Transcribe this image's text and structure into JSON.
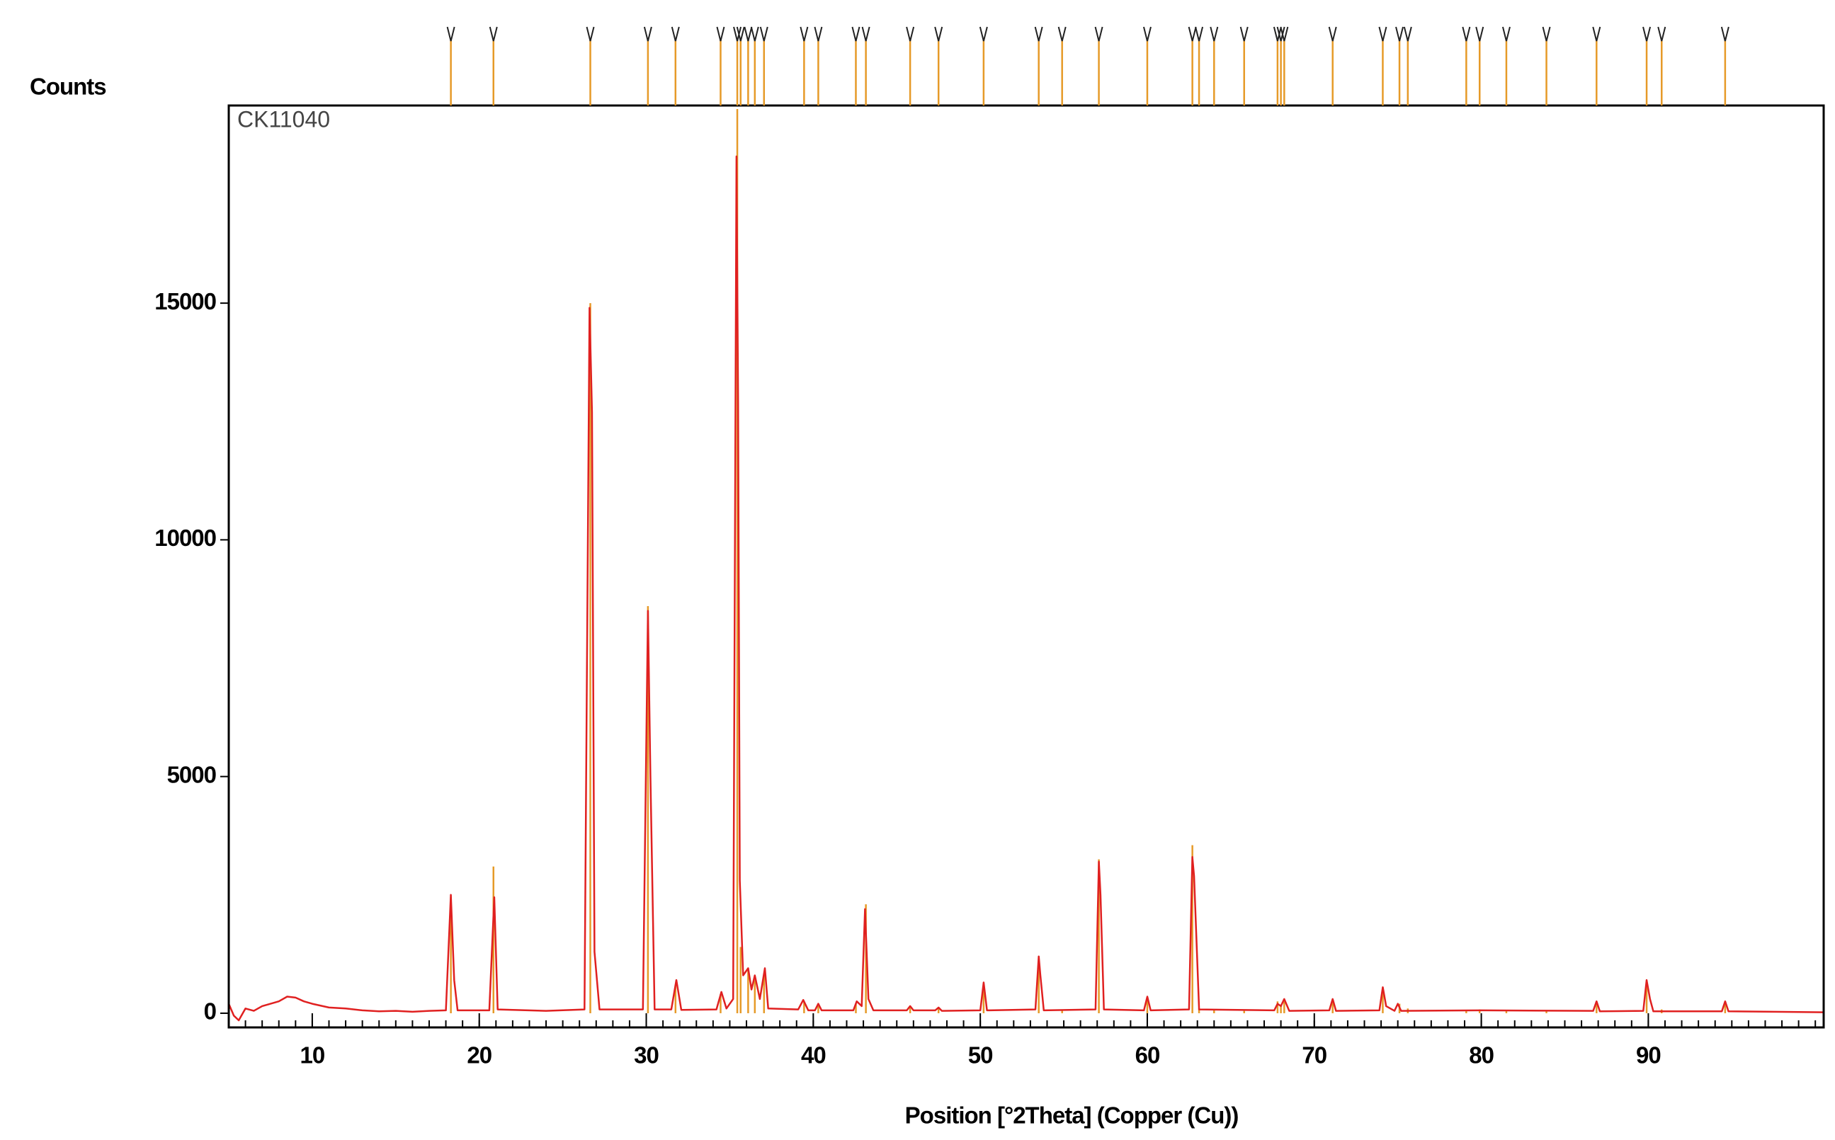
{
  "chart_data": {
    "type": "line",
    "y_label": "Counts",
    "annotation": "CK11040",
    "x_label": "Position [°2Theta] (Copper (Cu))",
    "xlim": [
      5,
      100.5
    ],
    "ylim": [
      -300,
      19175
    ],
    "xticks": [
      10,
      20,
      30,
      40,
      50,
      60,
      70,
      80,
      90
    ],
    "xminor_step": 1,
    "yticks": [
      0,
      5000,
      10000,
      15000
    ],
    "pattern": {
      "color": "#e02020",
      "x": [
        5,
        5.3,
        5.6,
        6,
        6.5,
        7,
        7.5,
        8,
        8.5,
        9,
        9.5,
        10,
        11,
        12,
        13,
        14,
        15,
        16,
        17,
        18,
        18.3,
        18.5,
        18.7,
        20.6,
        20.9,
        21.1,
        24,
        26.3,
        26.6,
        26.75,
        26.9,
        27.2,
        29.8,
        30.1,
        30.25,
        30.5,
        31.5,
        31.8,
        32.1,
        34.2,
        34.5,
        34.8,
        35.2,
        35.4,
        35.5,
        35.6,
        35.8,
        36.1,
        36.3,
        36.5,
        36.8,
        37.1,
        37.3,
        39.1,
        39.4,
        39.7,
        40.1,
        40.3,
        40.5,
        42.4,
        42.6,
        42.9,
        43.1,
        43.3,
        43.6,
        45.6,
        45.8,
        46,
        47.3,
        47.5,
        47.7,
        50,
        50.2,
        50.4,
        53.3,
        53.5,
        53.6,
        53.8,
        56.9,
        57.1,
        57.2,
        57.4,
        59.8,
        60,
        60.2,
        62.5,
        62.7,
        62.8,
        63.1,
        67.6,
        67.8,
        68,
        68.2,
        68.5,
        70.9,
        71.1,
        71.3,
        73.9,
        74.1,
        74.3,
        74.8,
        75,
        75.2,
        80,
        86.7,
        86.9,
        87.1,
        89.7,
        89.9,
        90.1,
        90.3,
        94.4,
        94.6,
        94.8,
        100.5
      ],
      "values": [
        200,
        -50,
        -150,
        100,
        50,
        150,
        200,
        250,
        350,
        330,
        250,
        200,
        120,
        100,
        60,
        40,
        50,
        30,
        50,
        60,
        2500,
        700,
        60,
        60,
        2450,
        80,
        50,
        80,
        14900,
        12700,
        1300,
        80,
        80,
        8500,
        5000,
        80,
        80,
        700,
        70,
        80,
        450,
        100,
        300,
        18100,
        12900,
        2800,
        800,
        950,
        500,
        800,
        300,
        950,
        100,
        80,
        280,
        60,
        60,
        200,
        60,
        60,
        250,
        150,
        2200,
        300,
        60,
        60,
        150,
        60,
        60,
        120,
        50,
        60,
        650,
        60,
        80,
        1200,
        800,
        60,
        80,
        3200,
        2500,
        80,
        60,
        350,
        60,
        80,
        3300,
        2900,
        80,
        60,
        200,
        150,
        300,
        50,
        60,
        300,
        50,
        60,
        550,
        150,
        50,
        200,
        50,
        60,
        50,
        250,
        40,
        50,
        700,
        300,
        40,
        40,
        250,
        40,
        20
      ]
    },
    "reference_peaks": {
      "color": "#e69a28",
      "x": [
        18.3,
        20.85,
        26.65,
        30.1,
        31.75,
        34.45,
        35.45,
        35.65,
        36.1,
        36.5,
        37.05,
        39.45,
        40.3,
        42.55,
        43.15,
        45.8,
        47.5,
        50.2,
        53.5,
        54.9,
        57.1,
        60.0,
        62.7,
        63.1,
        64.0,
        65.8,
        67.8,
        68.0,
        68.2,
        71.1,
        74.1,
        75.1,
        75.6,
        79.1,
        79.9,
        81.5,
        83.9,
        86.9,
        89.9,
        90.8,
        94.6
      ],
      "values": [
        2450,
        3100,
        15000,
        8600,
        600,
        400,
        19100,
        1400,
        900,
        700,
        800,
        250,
        150,
        200,
        2300,
        120,
        100,
        550,
        1100,
        80,
        3250,
        300,
        3550,
        100,
        80,
        50,
        250,
        150,
        250,
        250,
        450,
        200,
        100,
        60,
        80,
        60,
        50,
        220,
        600,
        80,
        200
      ]
    }
  }
}
